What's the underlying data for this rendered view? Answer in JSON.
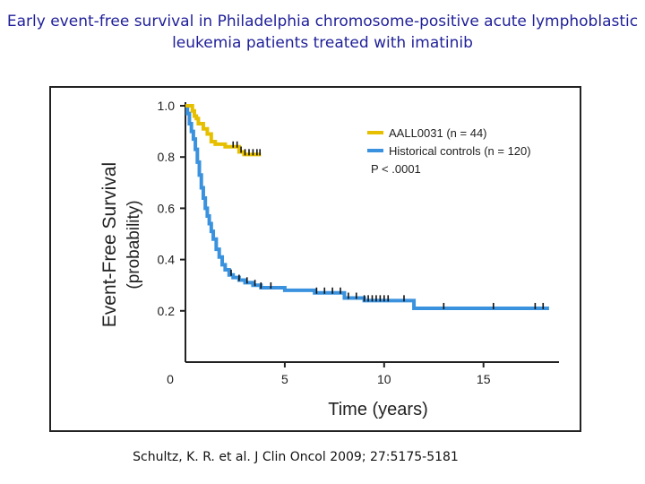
{
  "slide": {
    "title_line1": "Early event-free survival in Philadelphia chromosome-positive acute lymphoblastic",
    "title_line2": "leukemia patients treated with imatinib",
    "citation": "Schultz, K. R. et al. J Clin Oncol 2009; 27:5175-5181"
  },
  "chart_data": {
    "type": "line",
    "title": "",
    "xlabel": "Time (years)",
    "ylabel": "Event-Free Survival",
    "ylabel_sub": "(probability)",
    "xlim": [
      0,
      18.8
    ],
    "ylim": [
      0,
      1.0
    ],
    "x_ticks": [
      0,
      5,
      10,
      15
    ],
    "x_tick_labels": [
      "0",
      "5",
      "10",
      "15"
    ],
    "y_ticks": [
      0.2,
      0.4,
      0.6,
      0.8,
      1.0
    ],
    "y_tick_labels": [
      "0.2",
      "0.4",
      "0.6",
      "0.8",
      "1.0"
    ],
    "legend_position": "top-right",
    "annotation": "P < .0001",
    "colors": {
      "aall": "#e6c000",
      "historical": "#3a92de",
      "censor": "#111111",
      "axis": "#222222"
    },
    "series": [
      {
        "name": "AALL0031 (n = 44)",
        "color_key": "aall",
        "x": [
          0,
          0.35,
          0.45,
          0.55,
          0.65,
          0.9,
          1.1,
          1.3,
          1.5,
          1.7,
          2.0,
          2.3,
          2.7,
          2.95,
          3.2,
          3.5,
          3.8
        ],
        "y": [
          1.0,
          0.98,
          0.96,
          0.95,
          0.93,
          0.91,
          0.89,
          0.86,
          0.85,
          0.85,
          0.84,
          0.84,
          0.82,
          0.81,
          0.81,
          0.81,
          0.81
        ],
        "censor_x": [
          2.4,
          2.6,
          2.8,
          3.0,
          3.2,
          3.4,
          3.6,
          3.75
        ]
      },
      {
        "name": "Historical controls (n = 120)",
        "color_key": "historical",
        "x": [
          0,
          0.1,
          0.2,
          0.3,
          0.4,
          0.5,
          0.6,
          0.7,
          0.8,
          0.9,
          1.0,
          1.1,
          1.2,
          1.3,
          1.4,
          1.55,
          1.7,
          1.85,
          2.0,
          2.2,
          2.4,
          2.7,
          3.0,
          3.4,
          3.8,
          4.2,
          5.0,
          6.5,
          8.0,
          9.0,
          11.5,
          12.0,
          15.0,
          18.3
        ],
        "y": [
          1.0,
          0.97,
          0.93,
          0.9,
          0.87,
          0.83,
          0.78,
          0.73,
          0.68,
          0.64,
          0.6,
          0.57,
          0.54,
          0.51,
          0.48,
          0.44,
          0.41,
          0.38,
          0.36,
          0.34,
          0.33,
          0.32,
          0.31,
          0.3,
          0.29,
          0.29,
          0.28,
          0.27,
          0.25,
          0.24,
          0.21,
          0.21,
          0.21,
          0.21
        ],
        "censor_x": [
          2.3,
          2.7,
          3.1,
          3.5,
          3.8,
          4.3,
          6.6,
          7.0,
          7.4,
          7.8,
          8.2,
          8.6,
          9.0,
          9.2,
          9.4,
          9.6,
          9.8,
          10.0,
          10.2,
          11.0,
          13.0,
          15.5,
          17.6,
          18.0
        ]
      }
    ]
  }
}
